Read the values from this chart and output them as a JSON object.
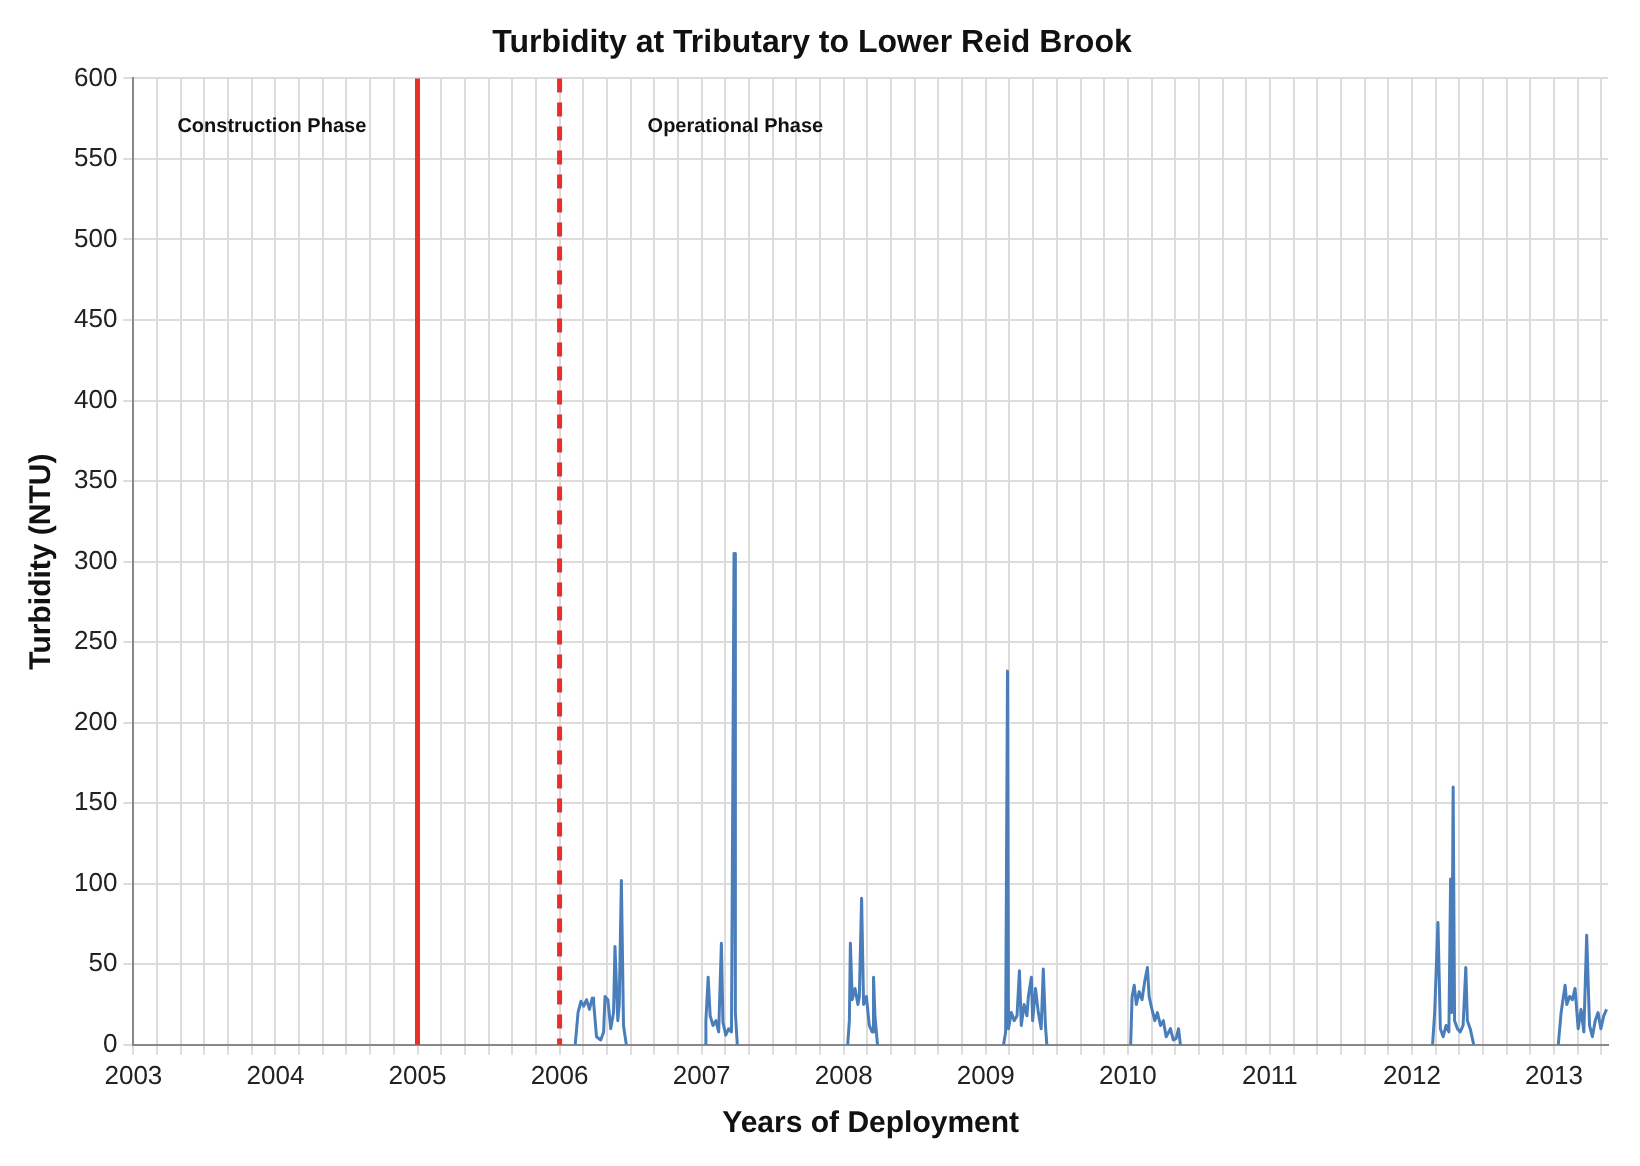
{
  "chart_data": {
    "type": "line",
    "title": "Turbidity at Tributary to Lower Reid Brook",
    "xlabel": "Years of Deployment",
    "ylabel": "Turbidity (NTU)",
    "xlim": [
      2003,
      2013.38
    ],
    "xticks": [
      2003,
      {
        "value": 2003.167,
        "label": null
      },
      {
        "value": 2003.333,
        "label": null
      },
      {
        "value": 2003.5,
        "label": null
      },
      {
        "value": 2003.667,
        "label": null
      },
      {
        "value": 2003.833,
        "label": null
      },
      2004,
      {
        "value": 2004.167,
        "label": null
      },
      {
        "value": 2004.333,
        "label": null
      },
      {
        "value": 2004.5,
        "label": null
      },
      {
        "value": 2004.667,
        "label": null
      },
      {
        "value": 2004.833,
        "label": null
      },
      2005,
      {
        "value": 2005.167,
        "label": null
      },
      {
        "value": 2005.333,
        "label": null
      },
      {
        "value": 2005.5,
        "label": null
      },
      {
        "value": 2005.667,
        "label": null
      },
      {
        "value": 2005.833,
        "label": null
      },
      2006,
      {
        "value": 2006.167,
        "label": null
      },
      {
        "value": 2006.333,
        "label": null
      },
      {
        "value": 2006.5,
        "label": null
      },
      {
        "value": 2006.667,
        "label": null
      },
      {
        "value": 2006.833,
        "label": null
      },
      2007,
      {
        "value": 2007.167,
        "label": null
      },
      {
        "value": 2007.333,
        "label": null
      },
      {
        "value": 2007.5,
        "label": null
      },
      {
        "value": 2007.667,
        "label": null
      },
      {
        "value": 2007.833,
        "label": null
      },
      2008,
      {
        "value": 2008.167,
        "label": null
      },
      {
        "value": 2008.333,
        "label": null
      },
      {
        "value": 2008.5,
        "label": null
      },
      {
        "value": 2008.667,
        "label": null
      },
      {
        "value": 2008.833,
        "label": null
      },
      2009,
      {
        "value": 2009.167,
        "label": null
      },
      {
        "value": 2009.333,
        "label": null
      },
      {
        "value": 2009.5,
        "label": null
      },
      {
        "value": 2009.667,
        "label": null
      },
      {
        "value": 2009.833,
        "label": null
      },
      2010,
      {
        "value": 2010.167,
        "label": null
      },
      {
        "value": 2010.333,
        "label": null
      },
      {
        "value": 2010.5,
        "label": null
      },
      {
        "value": 2010.667,
        "label": null
      },
      {
        "value": 2010.833,
        "label": null
      },
      2011,
      {
        "value": 2011.167,
        "label": null
      },
      {
        "value": 2011.333,
        "label": null
      },
      {
        "value": 2011.5,
        "label": null
      },
      {
        "value": 2011.667,
        "label": null
      },
      {
        "value": 2011.833,
        "label": null
      },
      2012,
      {
        "value": 2012.167,
        "label": null
      },
      {
        "value": 2012.333,
        "label": null
      },
      {
        "value": 2012.5,
        "label": null
      },
      {
        "value": 2012.667,
        "label": null
      },
      {
        "value": 2012.833,
        "label": null
      },
      2013,
      {
        "value": 2013.167,
        "label": null
      },
      {
        "value": 2013.333,
        "label": null
      }
    ],
    "ylim": [
      0,
      600
    ],
    "yticks": [
      0,
      50,
      100,
      150,
      200,
      250,
      300,
      350,
      400,
      450,
      500,
      550,
      600
    ],
    "grid": true,
    "legend": false,
    "marker": "none",
    "line_style": "solid",
    "ref_lines": [
      {
        "axis": "x",
        "value": 2005,
        "color": "#e8302a",
        "line_style": "solid"
      },
      {
        "axis": "x",
        "value": 2006,
        "color": "#e8302a",
        "line_style": "dashed"
      }
    ],
    "annotations": [
      "Construction Phase",
      "Operational Phase"
    ],
    "series": [
      {
        "color": "#4a7ebb",
        "x": [
          2006.11,
          2006.13,
          2006.15,
          2006.17,
          2006.19,
          2006.21,
          2006.23,
          2006.24,
          2006.26,
          2006.29,
          2006.31,
          2006.32,
          2006.34,
          2006.36,
          2006.38,
          2006.39,
          2006.41,
          2006.42,
          2006.435,
          2006.45,
          2006.47,
          2006.7,
          2007.018,
          2007.03,
          2007.046,
          2007.06,
          2007.08,
          2007.1,
          2007.12,
          2007.139,
          2007.15,
          2007.17,
          2007.19,
          2007.21,
          2007.228,
          2007.235,
          2007.24,
          2007.251,
          2007.6,
          2008.028,
          2008.04,
          2008.047,
          2008.06,
          2008.08,
          2008.1,
          2008.11,
          2008.126,
          2008.14,
          2008.16,
          2008.18,
          2008.2,
          2008.21,
          2008.22,
          2008.238,
          2008.6,
          2009.125,
          2009.14,
          2009.153,
          2009.16,
          2009.18,
          2009.2,
          2009.22,
          2009.237,
          2009.25,
          2009.27,
          2009.29,
          2009.3,
          2009.321,
          2009.33,
          2009.35,
          2009.37,
          2009.39,
          2009.405,
          2009.42,
          2009.43,
          2009.7,
          2010.02,
          2010.03,
          2010.045,
          2010.06,
          2010.08,
          2010.1,
          2010.12,
          2010.138,
          2010.15,
          2010.17,
          2010.19,
          2010.208,
          2010.23,
          2010.25,
          2010.27,
          2010.3,
          2010.32,
          2010.34,
          2010.357,
          2010.37,
          2011,
          2012.145,
          2012.16,
          2012.183,
          2012.2,
          2012.22,
          2012.24,
          2012.26,
          2012.272,
          2012.28,
          2012.29,
          2012.3,
          2012.32,
          2012.34,
          2012.36,
          2012.379,
          2012.39,
          2012.41,
          2012.435,
          2012.7,
          2013.03,
          2013.05,
          2013.078,
          2013.09,
          2013.11,
          2013.13,
          2013.148,
          2013.17,
          2013.19,
          2013.21,
          2013.23,
          2013.25,
          2013.27,
          2013.29,
          2013.31,
          2013.33,
          2013.35,
          2013.37
        ],
        "values": [
          0,
          20,
          27,
          24,
          28,
          22,
          29,
          26,
          5,
          3,
          8,
          30,
          28,
          10,
          20,
          61,
          15,
          25,
          102,
          12,
          0,
          null,
          0,
          15,
          42,
          18,
          12,
          15,
          8,
          63,
          14,
          6,
          10,
          8,
          305,
          20,
          20,
          0,
          null,
          0,
          15,
          63,
          28,
          35,
          25,
          30,
          91,
          25,
          30,
          12,
          8,
          42,
          18,
          0,
          null,
          0,
          8,
          232,
          10,
          20,
          15,
          18,
          46,
          12,
          25,
          18,
          30,
          42,
          15,
          35,
          20,
          10,
          47,
          12,
          0,
          null,
          0,
          30,
          37,
          25,
          33,
          28,
          40,
          48,
          30,
          22,
          15,
          20,
          12,
          15,
          5,
          10,
          3,
          4,
          10,
          0,
          null,
          0,
          20,
          76,
          10,
          5,
          12,
          8,
          103,
          20,
          160,
          15,
          10,
          8,
          12,
          48,
          15,
          10,
          0,
          null,
          0,
          20,
          37,
          25,
          30,
          28,
          35,
          10,
          22,
          8,
          68,
          12,
          5,
          15,
          20,
          10,
          18,
          22
        ]
      }
    ]
  }
}
